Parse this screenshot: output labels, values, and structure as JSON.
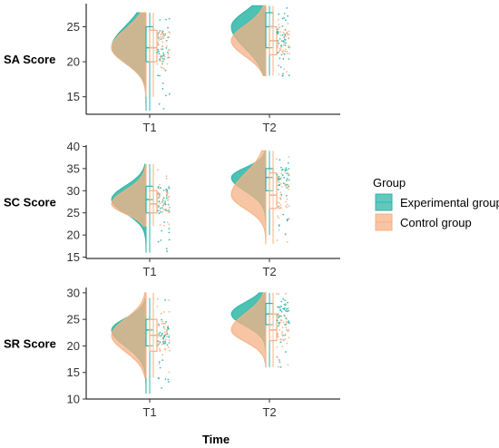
{
  "chart_data": {
    "type": "raincloud",
    "xlabel": "Time",
    "legend": {
      "title": "Group",
      "placement": "right",
      "entries": [
        {
          "name": "Experimental group",
          "color": "#2db6a7"
        },
        {
          "name": "Control group",
          "color": "#f5b185"
        }
      ]
    },
    "categories": [
      "T1",
      "T2"
    ],
    "panels": [
      {
        "ylabel": "SA Score",
        "ylim": [
          12.5,
          28.3
        ],
        "yticks": [
          15,
          20,
          25
        ],
        "groups": {
          "T1": {
            "Experimental group": {
              "min": 13,
              "q1": 20,
              "median": 22,
              "q3": 25,
              "max": 27
            },
            "Control group": {
              "min": 15,
              "q1": 20,
              "median": 22,
              "q3": 24.5,
              "max": 27
            }
          },
          "T2": {
            "Experimental group": {
              "min": 18,
              "q1": 22,
              "median": 25,
              "q3": 27,
              "max": 28
            },
            "Control group": {
              "min": 18,
              "q1": 21,
              "median": 23,
              "q3": 25,
              "max": 28
            }
          }
        }
      },
      {
        "ylabel": "SC Score",
        "ylim": [
          14.7,
          40.3
        ],
        "yticks": [
          15,
          20,
          25,
          30,
          35,
          40
        ],
        "groups": {
          "T1": {
            "Experimental group": {
              "min": 16,
              "q1": 25,
              "median": 28,
              "q3": 31,
              "max": 36
            },
            "Control group": {
              "min": 22,
              "q1": 25,
              "median": 27,
              "q3": 30,
              "max": 36
            }
          },
          "T2": {
            "Experimental group": {
              "min": 20,
              "q1": 30,
              "median": 33,
              "q3": 35,
              "max": 39
            },
            "Control group": {
              "min": 18,
              "q1": 26,
              "median": 29,
              "q3": 34,
              "max": 39
            }
          }
        }
      },
      {
        "ylabel": "SR Score",
        "ylim": [
          10,
          31
        ],
        "yticks": [
          10,
          15,
          20,
          25,
          30
        ],
        "groups": {
          "T1": {
            "Experimental group": {
              "min": 11,
              "q1": 20,
              "median": 23,
              "q3": 25,
              "max": 29
            },
            "Control group": {
              "min": 14,
              "q1": 19,
              "median": 22,
              "q3": 25,
              "max": 30
            }
          },
          "T2": {
            "Experimental group": {
              "min": 16,
              "q1": 24,
              "median": 26,
              "q3": 28,
              "max": 30
            },
            "Control group": {
              "min": 16,
              "q1": 21,
              "median": 23,
              "q3": 26,
              "max": 30
            }
          }
        }
      }
    ]
  }
}
